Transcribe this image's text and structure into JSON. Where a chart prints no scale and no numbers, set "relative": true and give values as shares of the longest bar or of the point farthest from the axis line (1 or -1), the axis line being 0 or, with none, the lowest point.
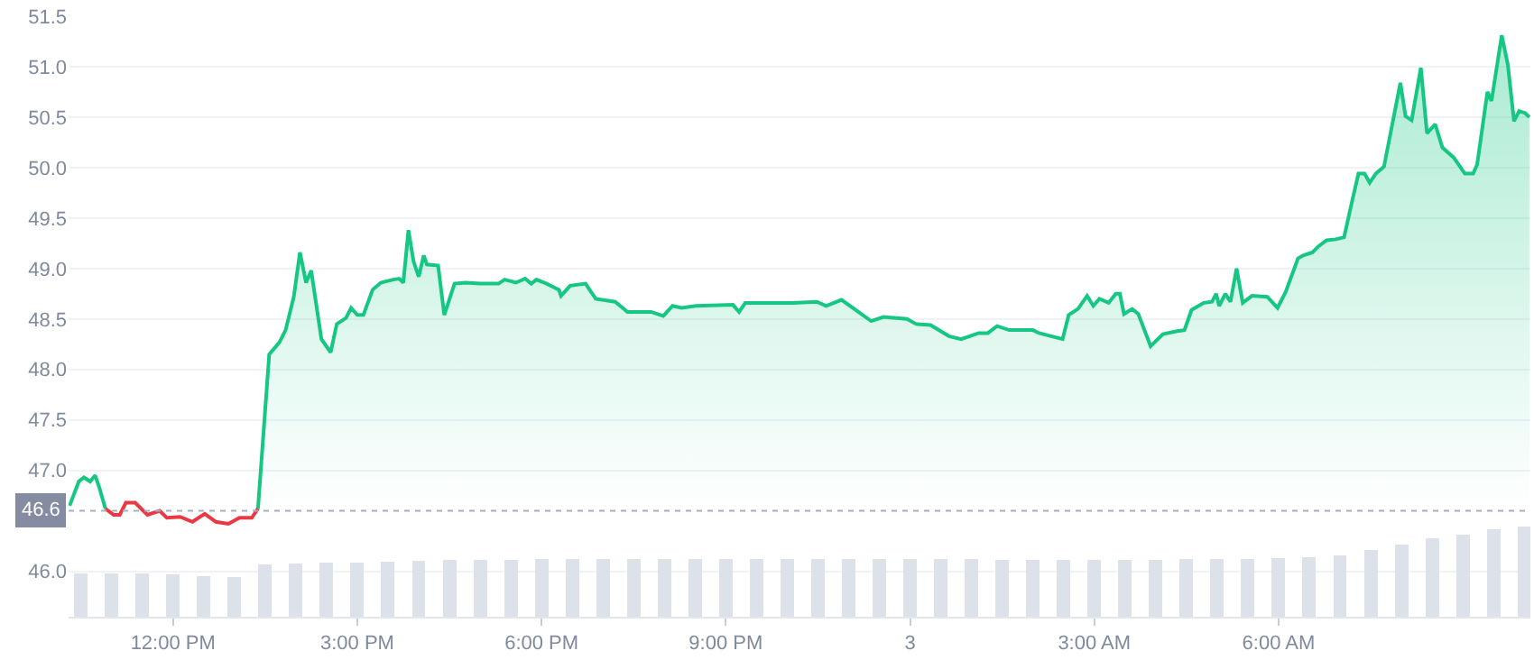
{
  "chart_data": [
    {
      "type": "area",
      "x": [
        "--01-02T10:19",
        "--01-02T10:28",
        "--01-02T10:33",
        "--01-02T10:39",
        "--01-02T10:44",
        "--01-02T10:48",
        "--01-02T10:54",
        "--01-02T11:02",
        "--01-02T11:08",
        "--01-02T11:14",
        "--01-02T11:23",
        "--01-02T11:35",
        "--01-02T11:47",
        "--01-02T11:54",
        "--01-02T12:07",
        "--01-02T12:19",
        "--01-02T12:31",
        "--01-02T12:42",
        "--01-02T12:54",
        "--01-02T13:05",
        "--01-02T13:17",
        "--01-02T13:23",
        "--01-02T13:34",
        "--01-02T13:44",
        "--01-02T13:50",
        "--01-02T13:58",
        "--01-02T14:04",
        "--01-02T14:10",
        "--01-02T14:15",
        "--01-02T14:25",
        "--01-02T14:34",
        "--01-02T14:40",
        "--01-02T14:49",
        "--01-02T14:54",
        "--01-02T15:00",
        "--01-02T15:06",
        "--01-02T15:15",
        "--01-02T15:23",
        "--01-02T15:35",
        "--01-02T15:41",
        "--01-02T15:45",
        "--01-02T15:50",
        "--01-02T15:55",
        "--01-02T16:00",
        "--01-02T16:05",
        "--01-02T16:08",
        "--01-02T16:19",
        "--01-02T16:25",
        "--01-02T16:35",
        "--01-02T16:46",
        "--01-02T17:00",
        "--01-02T17:18",
        "--01-02T17:24",
        "--01-02T17:35",
        "--01-02T17:44",
        "--01-02T17:50",
        "--01-02T17:55",
        "--01-02T18:05",
        "--01-02T18:17",
        "--01-02T18:19",
        "--01-02T18:28",
        "--01-02T18:43",
        "--01-02T18:53",
        "--01-02T19:12",
        "--01-02T19:24",
        "--01-02T19:47",
        "--01-02T19:59",
        "--01-02T20:08",
        "--01-02T20:17",
        "--01-02T20:31",
        "--01-02T21:07",
        "--01-02T21:13",
        "--01-02T21:19",
        "--01-02T21:42",
        "--01-02T21:54",
        "--01-02T22:05",
        "--01-02T22:29",
        "--01-02T22:38",
        "--01-02T22:53",
        "--01-02T23:04",
        "--01-02T23:22",
        "--01-02T23:34",
        "--01-02T23:57",
        "--01-03T00:06",
        "--01-03T00:20",
        "--01-03T00:38",
        "--01-03T00:50",
        "--01-03T01:07",
        "--01-03T01:16",
        "--01-03T01:25",
        "--01-03T01:37",
        "--01-03T01:49",
        "--01-03T02:00",
        "--01-03T02:06",
        "--01-03T02:29",
        "--01-03T02:35",
        "--01-03T02:44",
        "--01-03T02:53",
        "--01-03T02:59",
        "--01-03T03:05",
        "--01-03T03:14",
        "--01-03T03:21",
        "--01-03T03:25",
        "--01-03T03:29",
        "--01-03T03:37",
        "--01-03T03:43",
        "--01-03T03:55",
        "--01-03T04:07",
        "--01-03T04:21",
        "--01-03T04:28",
        "--01-03T04:35",
        "--01-03T04:47",
        "--01-03T04:55",
        "--01-03T04:59",
        "--01-03T05:02",
        "--01-03T05:08",
        "--01-03T05:13",
        "--01-03T05:19",
        "--01-03T05:25",
        "--01-03T05:34",
        "--01-03T05:49",
        "--01-03T05:59",
        "--01-03T06:07",
        "--01-03T06:19",
        "--01-03T06:24",
        "--01-03T06:33",
        "--01-03T06:39",
        "--01-03T06:47",
        "--01-03T06:56",
        "--01-03T07:04",
        "--01-03T07:11",
        "--01-03T07:18",
        "--01-03T07:24",
        "--01-03T07:29",
        "--01-03T07:35",
        "--01-03T07:43",
        "--01-03T07:59",
        "--01-03T08:04",
        "--01-03T08:10",
        "--01-03T08:19",
        "--01-03T08:25",
        "--01-03T08:33",
        "--01-03T08:40",
        "--01-03T08:51",
        "--01-03T09:02",
        "--01-03T09:10",
        "--01-03T09:14",
        "--01-03T09:24",
        "--01-03T09:28",
        "--01-03T09:38",
        "--01-03T09:44",
        "--01-03T09:50",
        "--01-03T09:55",
        "--01-03T10:01",
        "--01-03T10:05"
      ],
      "series": [
        {
          "color": "#16c784",
          "values": [
            46.65,
            46.89,
            46.93,
            46.89,
            46.95,
            46.83,
            46.62,
            null,
            null,
            null,
            null,
            null,
            null,
            null,
            null,
            null,
            null,
            null,
            null,
            null,
            null,
            46.62,
            48.15,
            48.27,
            48.39,
            48.72,
            49.16,
            48.86,
            48.98,
            48.3,
            48.17,
            48.45,
            48.51,
            48.61,
            48.54,
            48.54,
            48.79,
            48.86,
            48.89,
            48.9,
            48.86,
            49.38,
            49.07,
            48.92,
            49.13,
            49.04,
            49.03,
            48.54,
            48.85,
            48.86,
            48.85,
            48.85,
            48.89,
            48.86,
            48.9,
            48.85,
            48.89,
            48.85,
            48.79,
            48.73,
            48.83,
            48.85,
            48.7,
            48.67,
            48.57,
            48.57,
            48.53,
            48.63,
            48.61,
            48.63,
            48.64,
            48.57,
            48.66,
            48.66,
            48.66,
            48.66,
            48.67,
            48.63,
            48.69,
            48.61,
            48.48,
            48.52,
            48.5,
            48.45,
            48.44,
            48.33,
            48.3,
            48.36,
            48.36,
            48.43,
            48.39,
            48.39,
            48.39,
            48.36,
            48.3,
            48.54,
            48.6,
            48.73,
            48.63,
            48.7,
            48.66,
            48.75,
            48.75,
            48.55,
            48.6,
            48.55,
            48.23,
            48.35,
            48.38,
            48.39,
            48.59,
            48.66,
            48.67,
            48.75,
            48.63,
            48.75,
            48.67,
            49.0,
            48.66,
            48.73,
            48.72,
            48.61,
            48.77,
            49.1,
            49.13,
            49.16,
            49.22,
            49.28,
            49.29,
            49.31,
            49.63,
            49.94,
            49.94,
            49.85,
            49.94,
            50.01,
            50.84,
            50.51,
            50.47,
            50.99,
            50.34,
            50.43,
            50.2,
            50.1,
            49.94,
            49.94,
            50.03,
            50.75,
            50.66,
            51.31,
            51.02,
            50.46,
            50.56,
            50.54,
            50.5
          ]
        },
        {
          "type": "line",
          "color": "#ea3943",
          "x": [
            "--01-02T10:54",
            "--01-02T11:02",
            "--01-02T11:08",
            "--01-02T11:14",
            "--01-02T11:23",
            "--01-02T11:35",
            "--01-02T11:47",
            "--01-02T11:54",
            "--01-02T12:07",
            "--01-02T12:19",
            "--01-02T12:31",
            "--01-02T12:42",
            "--01-02T12:54",
            "--01-02T13:05",
            "--01-02T13:17",
            "--01-02T13:23"
          ],
          "values": [
            46.62,
            46.56,
            46.56,
            46.68,
            46.68,
            46.56,
            46.6,
            46.53,
            46.54,
            46.49,
            46.57,
            46.49,
            46.47,
            46.53,
            46.53,
            46.62
          ]
        }
      ],
      "xlim": [
        "--01-02T10:18",
        "--01-03T10:06"
      ],
      "xticks": [
        {
          "value": "--01-02T12:00",
          "label": "12:00 PM"
        },
        {
          "value": "--01-02T15:00",
          "label": "3:00 PM"
        },
        {
          "value": "--01-02T18:00",
          "label": "6:00 PM"
        },
        {
          "value": "--01-02T21:00",
          "label": "9:00 PM"
        },
        {
          "value": "--01-03T00:00",
          "label": "3"
        },
        {
          "value": "--01-03T03:00",
          "label": "3:00 AM"
        },
        {
          "value": "--01-03T06:00",
          "label": "6:00 AM"
        }
      ],
      "ylim": [
        45.55,
        51.5
      ],
      "yticks": [
        {
          "value": 46,
          "label": "46.0"
        },
        {
          "value": 47,
          "label": "47.0"
        },
        47.5,
        {
          "value": 48,
          "label": "48.0"
        },
        48.5,
        {
          "value": 49,
          "label": "49.0"
        },
        49.5,
        {
          "value": 50,
          "label": "50.0"
        },
        50.5,
        {
          "value": 51,
          "label": "51.0"
        },
        51.5
      ],
      "ref_lines": [
        {
          "axis": "y",
          "value": 46.6,
          "label": "46.6",
          "color": "#a6b0c3",
          "line_style": "dotted"
        }
      ],
      "grid": "y",
      "marker": "none",
      "line_style": "solid"
    },
    {
      "type": "bar",
      "relative": true,
      "color": "#dde1ea",
      "x": [
        "--01-02T10:30",
        "--01-02T11:00",
        "--01-02T11:30",
        "--01-02T12:00",
        "--01-02T12:30",
        "--01-02T13:00",
        "--01-02T13:30",
        "--01-02T14:00",
        "--01-02T14:30",
        "--01-02T15:00",
        "--01-02T15:30",
        "--01-02T16:00",
        "--01-02T16:30",
        "--01-02T17:00",
        "--01-02T17:30",
        "--01-02T18:00",
        "--01-02T18:30",
        "--01-02T19:00",
        "--01-02T19:30",
        "--01-02T20:00",
        "--01-02T20:30",
        "--01-02T21:00",
        "--01-02T21:30",
        "--01-02T22:00",
        "--01-02T22:30",
        "--01-02T23:00",
        "--01-02T23:30",
        "--01-03T00:00",
        "--01-03T00:30",
        "--01-03T01:00",
        "--01-03T01:30",
        "--01-03T02:00",
        "--01-03T02:30",
        "--01-03T03:00",
        "--01-03T03:30",
        "--01-03T04:00",
        "--01-03T04:30",
        "--01-03T05:00",
        "--01-03T05:30",
        "--01-03T06:00",
        "--01-03T06:30",
        "--01-03T07:00",
        "--01-03T07:30",
        "--01-03T08:00",
        "--01-03T08:30",
        "--01-03T09:00",
        "--01-03T09:30",
        "--01-03T10:00"
      ],
      "values": [
        0.48,
        0.48,
        0.48,
        0.47,
        0.45,
        0.44,
        0.58,
        0.59,
        0.6,
        0.6,
        0.61,
        0.62,
        0.63,
        0.63,
        0.63,
        0.64,
        0.64,
        0.64,
        0.64,
        0.64,
        0.64,
        0.64,
        0.64,
        0.64,
        0.64,
        0.64,
        0.64,
        0.64,
        0.64,
        0.64,
        0.63,
        0.63,
        0.63,
        0.63,
        0.63,
        0.63,
        0.64,
        0.64,
        0.64,
        0.65,
        0.66,
        0.68,
        0.74,
        0.8,
        0.87,
        0.91,
        0.97,
        1
      ],
      "xlim": [
        "--01-02T10:18",
        "--01-03T10:06"
      ]
    }
  ]
}
